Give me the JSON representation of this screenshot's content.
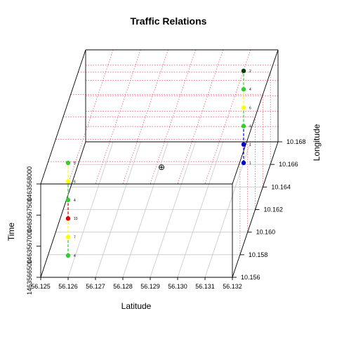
{
  "chart_data": {
    "type": "scatter3d",
    "title": "Traffic Relations",
    "xlabel": "Latitude",
    "ylabel": "Longitude",
    "zlabel": "Time",
    "xlim": [
      56.125,
      56.132
    ],
    "ylim": [
      10.156,
      10.168
    ],
    "x_ticks": [
      "56.125",
      "56.126",
      "56.127",
      "56.128",
      "56.129",
      "56.130",
      "56.131",
      "56.132"
    ],
    "y_ticks": [
      "10.156",
      "10.158",
      "10.160",
      "10.162",
      "10.164",
      "10.166",
      "10.168"
    ],
    "z_ticks": [
      "1463566500",
      "1463567000",
      "1463567500",
      "1463568000"
    ],
    "center_marker": "⊕",
    "colors": {
      "green": "#32cd32",
      "yellow": "#ffff00",
      "red": "#dd0000",
      "blue": "#0000cc",
      "darkgreen": "#004000"
    },
    "series": [
      {
        "points": [
          {
            "label": "4",
            "color": "green"
          },
          {
            "label": "7",
            "color": "yellow"
          },
          {
            "label": "10",
            "color": "red"
          },
          {
            "label": "4",
            "color": "green"
          },
          {
            "label": "6",
            "color": "yellow"
          },
          {
            "label": "5",
            "color": "green"
          }
        ]
      },
      {
        "points": [
          {
            "label": "1",
            "color": "blue"
          },
          {
            "label": "1",
            "color": "blue"
          },
          {
            "label": "4",
            "color": "green"
          },
          {
            "label": "6",
            "color": "yellow"
          },
          {
            "label": "4",
            "color": "green"
          },
          {
            "label": "2",
            "color": "darkgreen"
          }
        ]
      }
    ]
  }
}
